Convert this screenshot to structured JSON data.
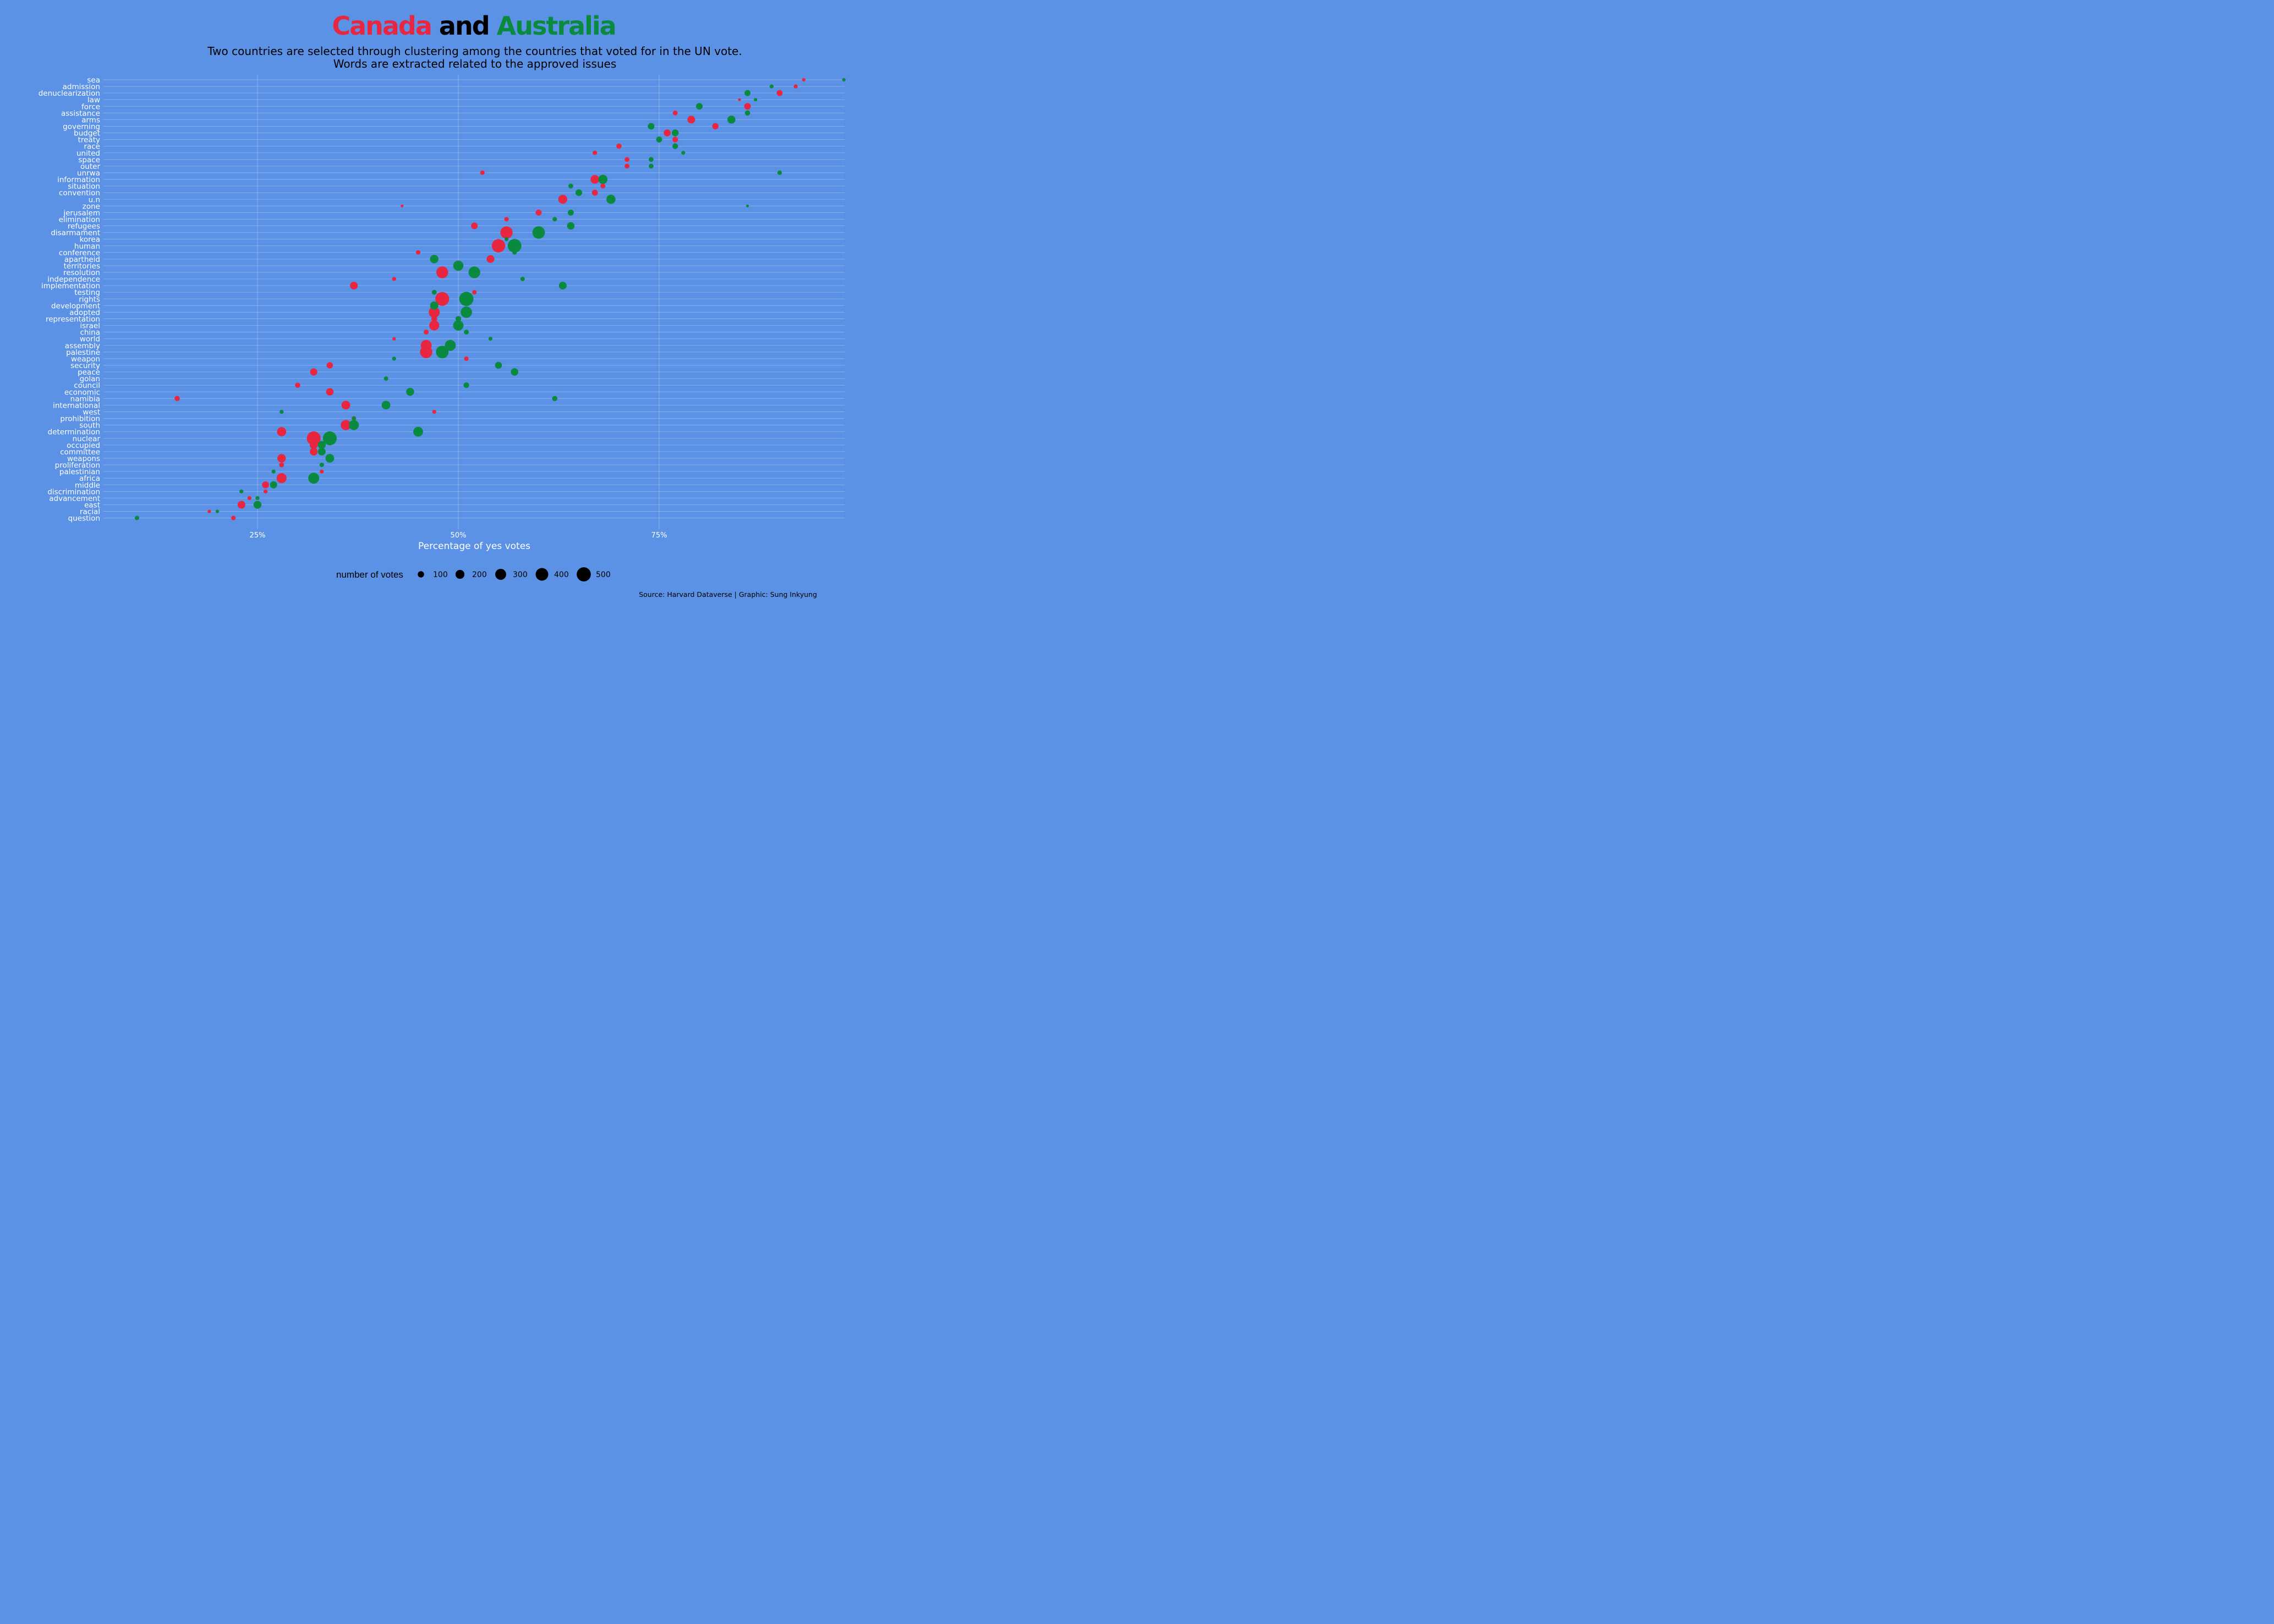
{
  "title": {
    "country1": "Canada",
    "joiner": "and",
    "country2": "Australia"
  },
  "subtitle_line1": "Two countries are selected through clustering among the countries that voted for in the UN vote.",
  "subtitle_line2": "Words are extracted related to the approved issues",
  "caption": "Source: Harvard Dataverse | Graphic: Sung Inkyung",
  "colors": {
    "background": "#5b92e5",
    "canada": "#e8263f",
    "australia": "#0a8a3e",
    "title_joiner": "#000000"
  },
  "chart_data": {
    "type": "scatter",
    "xlabel": "Percentage of yes votes",
    "xlim": [
      5,
      98
    ],
    "xticks": [
      25,
      50,
      75
    ],
    "xtick_labels": [
      "25%",
      "50%",
      "75%"
    ],
    "categories": [
      "sea",
      "admission",
      "denuclearization",
      "law",
      "force",
      "assistance",
      "arms",
      "governing",
      "budget",
      "treaty",
      "race",
      "united",
      "space",
      "outer",
      "unrwa",
      "information",
      "situation",
      "convention",
      "u.n",
      "zone",
      "jerusalem",
      "elimination",
      "refugees",
      "disarmament",
      "korea",
      "human",
      "conference",
      "apartheid",
      "territories",
      "resolution",
      "independence",
      "implementation",
      "testing",
      "rights",
      "development",
      "adopted",
      "representation",
      "israel",
      "china",
      "world",
      "assembly",
      "palestine",
      "weapon",
      "security",
      "peace",
      "golan",
      "council",
      "economic",
      "namibia",
      "international",
      "west",
      "prohibition",
      "south",
      "determination",
      "nuclear",
      "occupied",
      "committee",
      "weapons",
      "proliferation",
      "palestinian",
      "africa",
      "middle",
      "discrimination",
      "advancement",
      "east",
      "racial",
      "question"
    ],
    "series": [
      {
        "name": "Canada",
        "color": "#e8263f",
        "x": [
          93,
          92,
          90,
          85,
          86,
          77,
          79,
          82,
          76,
          77,
          70,
          67,
          71,
          71,
          53,
          67,
          68,
          67,
          63,
          43,
          60,
          56,
          52,
          56,
          56,
          55,
          45,
          54,
          50,
          48,
          42,
          37,
          52,
          48,
          47,
          47,
          47,
          47,
          46,
          42,
          46,
          46,
          51,
          34,
          32,
          41,
          30,
          34,
          15,
          36,
          47,
          37,
          36,
          28,
          32,
          32,
          32,
          28,
          28,
          33,
          28,
          26,
          26,
          24,
          23,
          19,
          22
        ],
        "votes": [
          30,
          40,
          90,
          20,
          110,
          60,
          150,
          100,
          120,
          80,
          70,
          50,
          60,
          60,
          50,
          190,
          60,
          90,
          200,
          20,
          90,
          50,
          110,
          380,
          40,
          450,
          50,
          150,
          250,
          350,
          40,
          150,
          50,
          480,
          130,
          300,
          90,
          250,
          60,
          30,
          300,
          380,
          50,
          100,
          130,
          40,
          70,
          140,
          70,
          190,
          40,
          50,
          260,
          210,
          480,
          160,
          150,
          180,
          60,
          40,
          250,
          120,
          40,
          40,
          150,
          30,
          50
        ]
      },
      {
        "name": "Australia",
        "color": "#0a8a3e",
        "x": [
          98,
          89,
          86,
          87,
          80,
          86,
          84,
          74,
          77,
          75,
          77,
          78,
          74,
          74,
          90,
          68,
          64,
          65,
          69,
          86,
          64,
          62,
          64,
          60,
          56,
          57,
          57,
          47,
          50,
          52,
          58,
          63,
          47,
          51,
          47,
          51,
          50,
          50,
          51,
          54,
          49,
          48,
          42,
          55,
          57,
          41,
          51,
          44,
          62,
          41,
          28,
          37,
          37,
          45,
          34,
          33,
          33,
          34,
          33,
          27,
          32,
          27,
          23,
          25,
          25,
          20,
          10
        ],
        "votes": [
          30,
          40,
          90,
          30,
          110,
          70,
          160,
          110,
          120,
          90,
          80,
          40,
          60,
          60,
          50,
          210,
          60,
          110,
          210,
          20,
          90,
          50,
          140,
          390,
          40,
          470,
          50,
          180,
          260,
          340,
          50,
          150,
          60,
          510,
          170,
          320,
          80,
          270,
          60,
          40,
          300,
          400,
          40,
          120,
          140,
          50,
          80,
          160,
          70,
          190,
          40,
          40,
          250,
          240,
          480,
          160,
          150,
          190,
          50,
          40,
          300,
          130,
          40,
          40,
          160,
          30,
          50
        ]
      }
    ],
    "size_legend": {
      "title": "number of votes",
      "values": [
        100,
        200,
        300,
        400,
        500
      ]
    }
  }
}
